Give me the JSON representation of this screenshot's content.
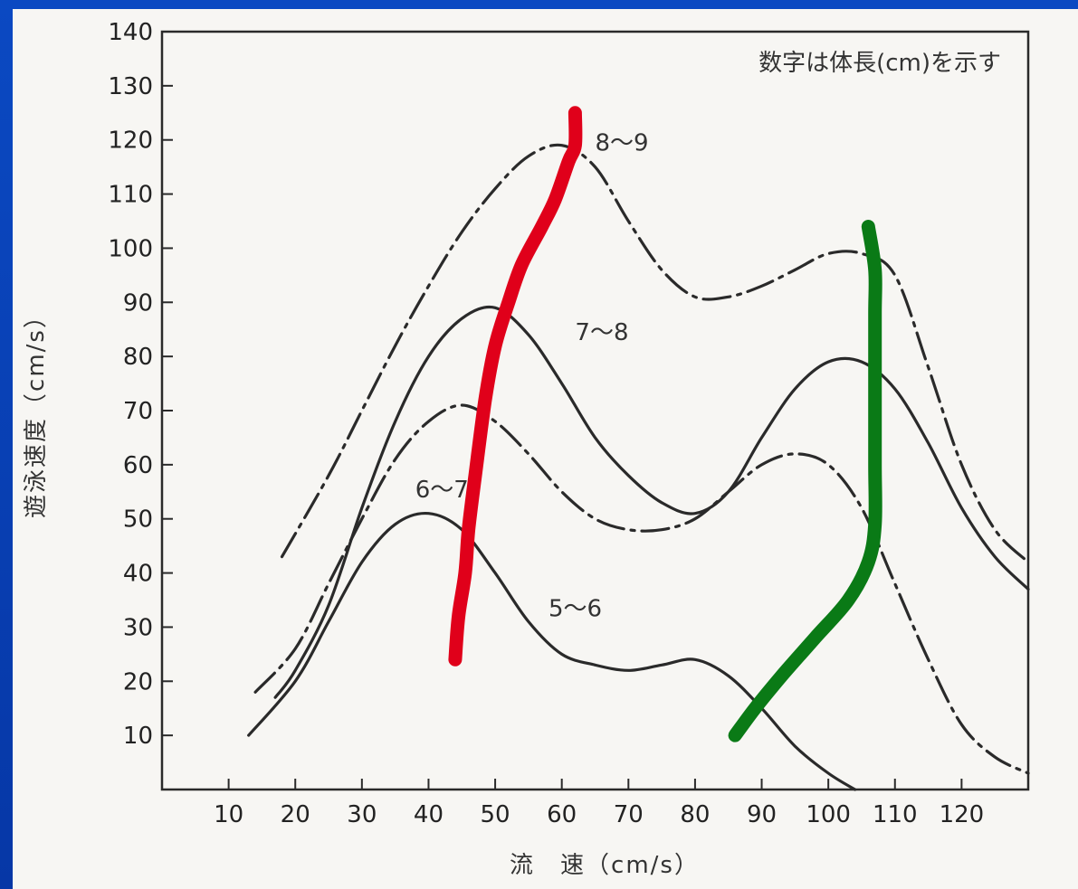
{
  "chart_data": {
    "type": "line",
    "title": "",
    "annotation": "数字は体長(cm)を示す",
    "xlabel": "流　速（cm/s）",
    "ylabel": "遊泳速度（cm/s）",
    "xlim": [
      0,
      130
    ],
    "ylim": [
      0,
      140
    ],
    "xticks": [
      10,
      20,
      30,
      40,
      50,
      60,
      70,
      80,
      90,
      100,
      110,
      120
    ],
    "yticks": [
      10,
      20,
      30,
      40,
      50,
      60,
      70,
      80,
      90,
      100,
      110,
      120,
      130,
      140
    ],
    "grid": false,
    "series": [
      {
        "name": "8～9",
        "style": "dash-dot",
        "color": "#2a2a2a",
        "label_at": [
          65,
          118
        ],
        "points": [
          [
            18,
            43
          ],
          [
            25,
            58
          ],
          [
            30,
            70
          ],
          [
            35,
            82
          ],
          [
            40,
            93
          ],
          [
            45,
            103
          ],
          [
            50,
            111
          ],
          [
            55,
            117
          ],
          [
            60,
            119
          ],
          [
            65,
            115
          ],
          [
            70,
            105
          ],
          [
            75,
            96
          ],
          [
            80,
            91
          ],
          [
            85,
            91
          ],
          [
            90,
            93
          ],
          [
            95,
            96
          ],
          [
            100,
            99
          ],
          [
            105,
            99
          ],
          [
            110,
            95
          ],
          [
            115,
            78
          ],
          [
            120,
            60
          ],
          [
            125,
            48
          ],
          [
            130,
            42
          ]
        ]
      },
      {
        "name": "7～8",
        "style": "solid",
        "color": "#2a2a2a",
        "label_at": [
          62,
          83
        ],
        "points": [
          [
            17,
            17
          ],
          [
            20,
            22
          ],
          [
            25,
            34
          ],
          [
            30,
            52
          ],
          [
            35,
            68
          ],
          [
            40,
            80
          ],
          [
            45,
            87
          ],
          [
            50,
            89
          ],
          [
            55,
            84
          ],
          [
            60,
            75
          ],
          [
            65,
            65
          ],
          [
            70,
            58
          ],
          [
            75,
            53
          ],
          [
            80,
            51
          ],
          [
            85,
            55
          ],
          [
            90,
            65
          ],
          [
            95,
            74
          ],
          [
            100,
            79
          ],
          [
            105,
            79
          ],
          [
            110,
            74
          ],
          [
            115,
            64
          ],
          [
            120,
            52
          ],
          [
            125,
            43
          ],
          [
            130,
            37
          ]
        ]
      },
      {
        "name": "6～7",
        "style": "dash-dot",
        "color": "#2a2a2a",
        "label_at": [
          38,
          54
        ],
        "points": [
          [
            14,
            18
          ],
          [
            20,
            26
          ],
          [
            25,
            38
          ],
          [
            30,
            50
          ],
          [
            35,
            61
          ],
          [
            40,
            68
          ],
          [
            45,
            71
          ],
          [
            50,
            68
          ],
          [
            55,
            62
          ],
          [
            60,
            55
          ],
          [
            65,
            50
          ],
          [
            70,
            48
          ],
          [
            75,
            48
          ],
          [
            80,
            50
          ],
          [
            85,
            55
          ],
          [
            90,
            60
          ],
          [
            95,
            62
          ],
          [
            100,
            60
          ],
          [
            105,
            52
          ],
          [
            110,
            38
          ],
          [
            115,
            24
          ],
          [
            120,
            12
          ],
          [
            125,
            6
          ],
          [
            130,
            3
          ]
        ]
      },
      {
        "name": "5～6",
        "style": "solid",
        "color": "#2a2a2a",
        "label_at": [
          58,
          32
        ],
        "points": [
          [
            13,
            10
          ],
          [
            20,
            20
          ],
          [
            25,
            31
          ],
          [
            30,
            42
          ],
          [
            35,
            49
          ],
          [
            40,
            51
          ],
          [
            45,
            48
          ],
          [
            50,
            40
          ],
          [
            55,
            31
          ],
          [
            60,
            25
          ],
          [
            65,
            23
          ],
          [
            70,
            22
          ],
          [
            75,
            23
          ],
          [
            80,
            24
          ],
          [
            85,
            21
          ],
          [
            90,
            15
          ],
          [
            95,
            8
          ],
          [
            100,
            3
          ],
          [
            104,
            0
          ]
        ]
      }
    ],
    "highlights": [
      {
        "color": "#e0001a",
        "points": [
          [
            44,
            24
          ],
          [
            44.5,
            32
          ],
          [
            45.5,
            40
          ],
          [
            46,
            48
          ],
          [
            47,
            58
          ],
          [
            48.5,
            72
          ],
          [
            50,
            82
          ],
          [
            52,
            90
          ],
          [
            54,
            97
          ],
          [
            57,
            104
          ],
          [
            59,
            109
          ],
          [
            61,
            116
          ],
          [
            62,
            119
          ],
          [
            62,
            125
          ]
        ]
      },
      {
        "color": "#0a7a16",
        "points": [
          [
            86,
            10
          ],
          [
            89,
            15
          ],
          [
            93,
            21
          ],
          [
            98,
            28
          ],
          [
            103,
            35
          ],
          [
            106,
            42
          ],
          [
            107,
            49
          ],
          [
            107,
            60
          ],
          [
            107,
            75
          ],
          [
            107,
            88
          ],
          [
            107,
            96
          ],
          [
            106,
            104
          ]
        ]
      }
    ]
  }
}
